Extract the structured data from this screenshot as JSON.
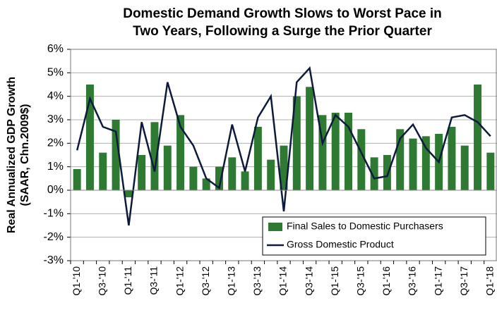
{
  "chart_data": {
    "type": "bar_line",
    "title": [
      "Domestic Demand Growth Slows to Worst Pace in",
      "Two Years, Following a Surge the Prior Quarter"
    ],
    "y_label": [
      "Real Annualized GDP Growth",
      "(SAAR, Chn.2009$)"
    ],
    "categories": [
      "Q1-'10",
      null,
      "Q3-'10",
      null,
      "Q1-'11",
      null,
      "Q3-'11",
      null,
      "Q1-'12",
      null,
      "Q3-'12",
      null,
      "Q1-'13",
      null,
      "Q3-'13",
      null,
      "Q1-'14",
      null,
      "Q3-'14",
      null,
      "Q1-'15",
      null,
      "Q3-'15",
      null,
      "Q1-'16",
      null,
      "Q3-'16",
      null,
      "Q1-'17",
      null,
      "Q3-'17",
      null,
      "Q1-'18"
    ],
    "series": [
      {
        "name": "Final Sales to Domestic Purchasers",
        "type": "bar",
        "color": "#2e7a32",
        "values": [
          0.9,
          4.5,
          1.6,
          3.0,
          -0.3,
          1.5,
          2.9,
          1.9,
          3.2,
          1.0,
          0.5,
          1.0,
          1.4,
          0.8,
          2.7,
          1.3,
          1.9,
          4.0,
          4.4,
          3.2,
          3.3,
          3.3,
          2.6,
          1.4,
          1.5,
          2.6,
          2.2,
          2.3,
          2.4,
          2.7,
          1.9,
          4.5,
          1.6
        ]
      },
      {
        "name": "Gross Domestic Product",
        "type": "line",
        "color": "#0d1a3c",
        "values": [
          1.7,
          3.9,
          2.7,
          2.5,
          -1.5,
          2.9,
          0.8,
          4.6,
          2.7,
          1.9,
          0.5,
          0.1,
          2.8,
          0.8,
          3.1,
          4.0,
          -0.9,
          4.6,
          5.2,
          2.0,
          3.2,
          2.7,
          1.6,
          0.5,
          0.6,
          2.2,
          2.8,
          1.8,
          1.2,
          3.1,
          3.2,
          2.9,
          2.3
        ]
      }
    ],
    "ylim": [
      -3,
      6
    ],
    "yticks": [
      {
        "value": -3,
        "label": "-3%"
      },
      {
        "value": -2,
        "label": "-2%"
      },
      {
        "value": -1,
        "label": "-1%"
      },
      {
        "value": 0,
        "label": "0%"
      },
      {
        "value": 1,
        "label": "1%"
      },
      {
        "value": 2,
        "label": "2%"
      },
      {
        "value": 3,
        "label": "3%"
      },
      {
        "value": 4,
        "label": "4%"
      },
      {
        "value": 5,
        "label": "5%"
      },
      {
        "value": 6,
        "label": "6%"
      }
    ],
    "grid": true,
    "legend": "lower right"
  }
}
